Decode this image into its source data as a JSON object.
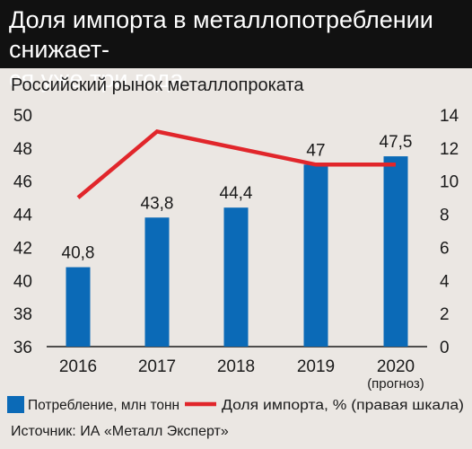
{
  "title": "Доля импорта в металлопотреблении снижает-ся уже три года",
  "title_lines": [
    "Доля импорта в металлопотреблении снижает-",
    "ся уже три года"
  ],
  "subtitle": "Российский рынок металлопроката",
  "source": "Источник: ИА «Металл Эксперт»",
  "colors": {
    "bar": "#0b6ab7",
    "line": "#e1262b",
    "header_bg": "#111111",
    "page_bg": "#ebe7e3"
  },
  "chart_data": {
    "type": "bar",
    "categories": [
      "2016",
      "2017",
      "2018",
      "2019",
      "2020"
    ],
    "category_notes": [
      "",
      "",
      "",
      "",
      "(прогноз)"
    ],
    "series": [
      {
        "name": "Потребление, млн тонн",
        "type": "bar",
        "axis": "left",
        "values": [
          40.8,
          43.8,
          44.4,
          47,
          47.5
        ],
        "labels": [
          "40,8",
          "43,8",
          "44,4",
          "47",
          "47,5"
        ]
      },
      {
        "name": "Доля импорта, % (правая шкала)",
        "type": "line",
        "axis": "right",
        "values": [
          9,
          13,
          12,
          11,
          11
        ]
      }
    ],
    "ylim": [
      36,
      50
    ],
    "y_ticks": [
      36,
      38,
      40,
      42,
      44,
      46,
      48,
      50
    ],
    "y2lim": [
      0,
      14
    ],
    "y2_ticks": [
      0,
      2,
      4,
      6,
      8,
      10,
      12,
      14
    ],
    "grid": false,
    "legend": "bottom"
  }
}
